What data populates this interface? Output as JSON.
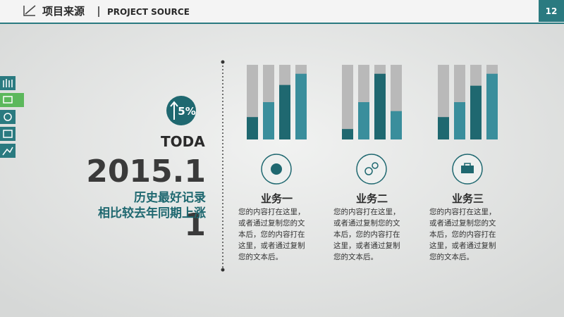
{
  "header": {
    "title": "项目来源",
    "subtitle": "PROJECT SOURCE",
    "page": "12"
  },
  "highlight": {
    "percent": "5%",
    "today": "TODA",
    "date": "2015.1",
    "date_wrap": "1",
    "lines": [
      "历史最好记录",
      "相比较去年同期上涨"
    ]
  },
  "charts": [
    {
      "type": "bar",
      "values": [
        30,
        50,
        73,
        88
      ],
      "ylim": [
        0,
        100
      ],
      "colors": [
        "#1f6870",
        "#3a8e9c",
        "#1f6870",
        "#3a8e9c"
      ],
      "track_color": "#b9b9b9",
      "label": "业务一",
      "text": [
        "您的内容打在这里，",
        "或者通过复制您的文",
        "本后，您的内容打在",
        "这里，或者通过复制",
        "您的文本后。"
      ]
    },
    {
      "type": "bar",
      "values": [
        14,
        50,
        88,
        38
      ],
      "ylim": [
        0,
        100
      ],
      "colors": [
        "#1f6870",
        "#3a8e9c",
        "#1f6870",
        "#3a8e9c"
      ],
      "track_color": "#b9b9b9",
      "label": "业务二",
      "text": [
        "您的内容打在这里，",
        "或者通过复制您的文",
        "本后，您的内容打在",
        "这里，或者通过复制",
        "您的文本后。"
      ]
    },
    {
      "type": "bar",
      "values": [
        30,
        50,
        72,
        88
      ],
      "ylim": [
        0,
        100
      ],
      "colors": [
        "#1f6870",
        "#3a8e9c",
        "#1f6870",
        "#3a8e9c"
      ],
      "track_color": "#b9b9b9",
      "label": "业务三",
      "text": [
        "您的内容打在这里，",
        "或者通过复制您的文",
        "本后，您的内容打在",
        "这里，或者通过复制",
        "您的文本后。"
      ]
    }
  ]
}
